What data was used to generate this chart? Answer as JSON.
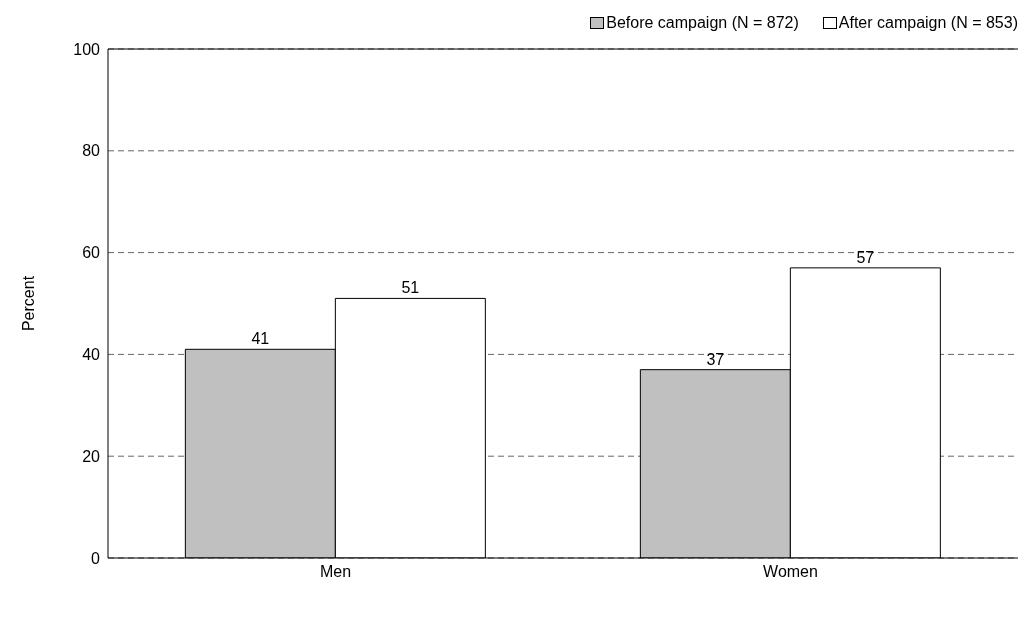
{
  "chart_data": {
    "type": "bar",
    "ylabel": "Percent",
    "categories": [
      "Men",
      "Women"
    ],
    "series": [
      {
        "name": "Before campaign (N = 872)",
        "color": "#c0c0c0",
        "values": [
          41,
          37
        ]
      },
      {
        "name": "After campaign (N = 853)",
        "color": "#ffffff",
        "values": [
          51,
          57
        ]
      }
    ],
    "ylim": [
      0,
      100
    ],
    "yticks": [
      0,
      20,
      40,
      60,
      80,
      100
    ],
    "grid": "y",
    "legend": "top right",
    "data_labels": true
  }
}
